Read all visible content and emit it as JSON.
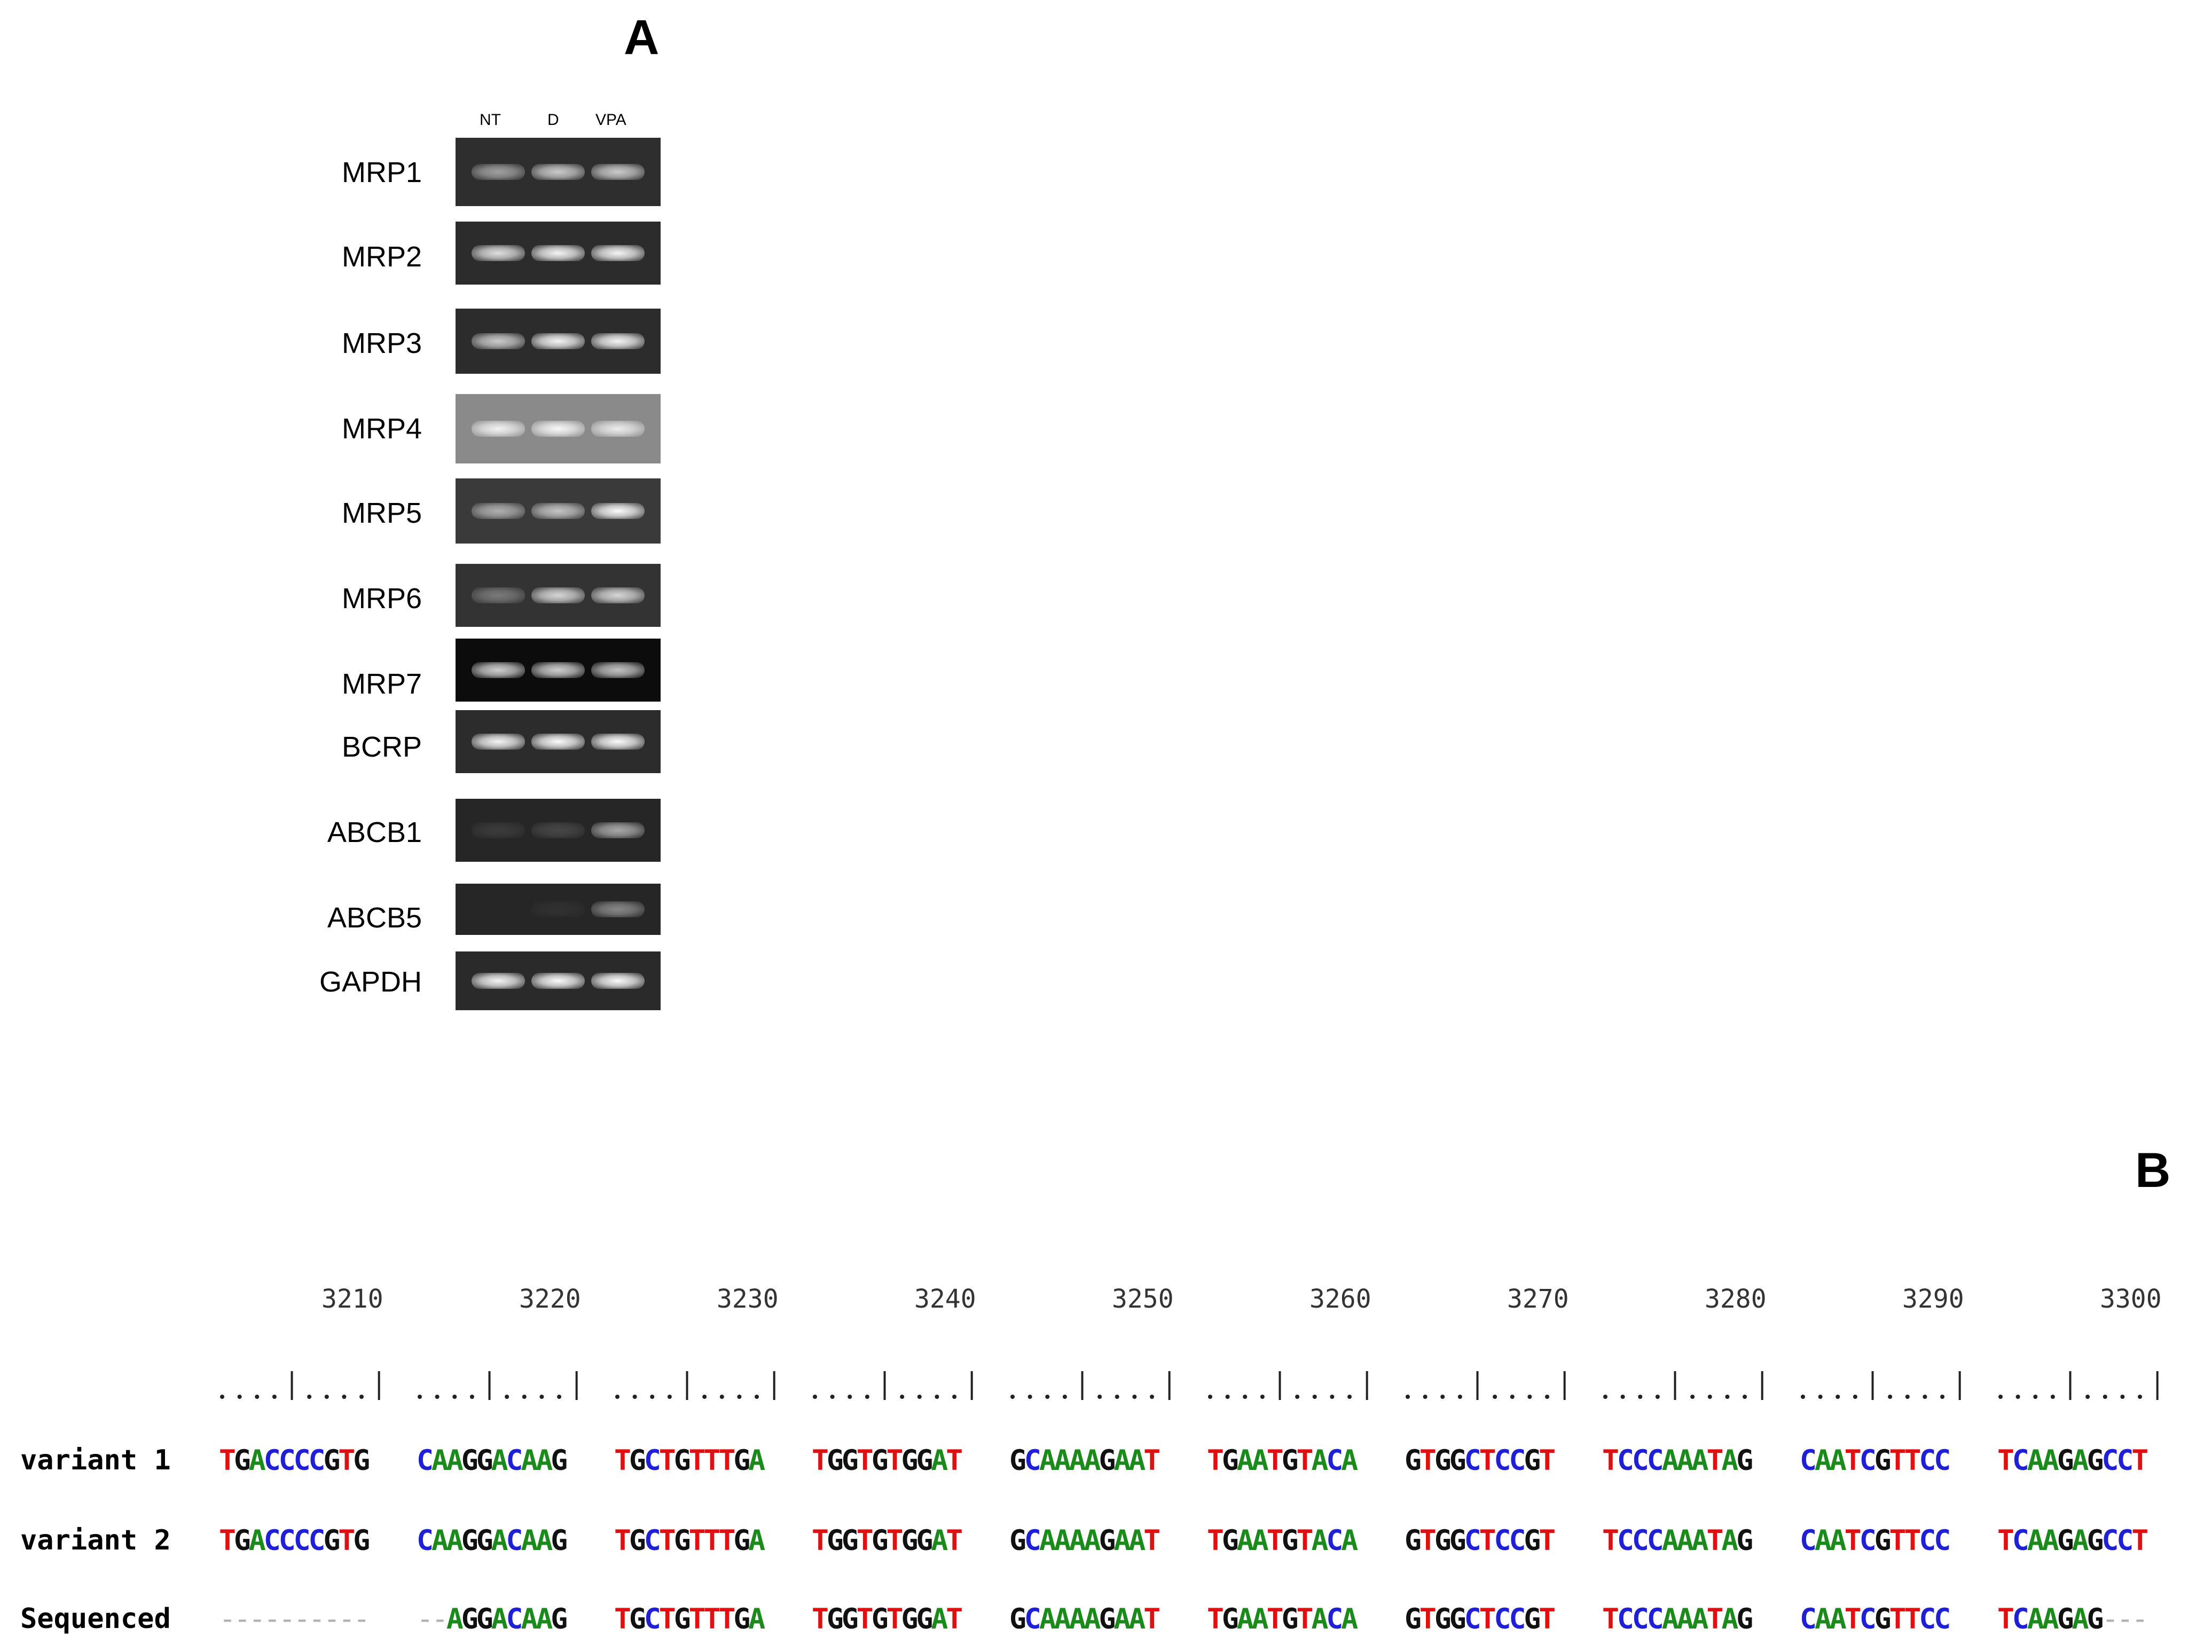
{
  "panel_a": {
    "letter": "A",
    "lanes": [
      "NT",
      "D",
      "VPA"
    ],
    "genes": [
      {
        "name": "MRP1",
        "bg": "#2e2e2e",
        "intensity": [
          0.55,
          0.75,
          0.75
        ]
      },
      {
        "name": "MRP2",
        "bg": "#2c2c2c",
        "intensity": [
          0.85,
          0.95,
          0.95
        ]
      },
      {
        "name": "MRP3",
        "bg": "#2c2c2c",
        "intensity": [
          0.75,
          0.95,
          0.95
        ]
      },
      {
        "name": "MRP4",
        "bg": "#8a8a8a",
        "intensity": [
          0.9,
          0.95,
          0.85
        ]
      },
      {
        "name": "MRP5",
        "bg": "#3a3a3a",
        "intensity": [
          0.6,
          0.7,
          0.98
        ]
      },
      {
        "name": "MRP6",
        "bg": "#333333",
        "intensity": [
          0.35,
          0.8,
          0.8
        ]
      },
      {
        "name": "MRP7",
        "bg": "#0c0c0c",
        "intensity": [
          0.8,
          0.8,
          0.75
        ]
      },
      {
        "name": "BCRP",
        "bg": "#2c2c2c",
        "intensity": [
          0.95,
          0.98,
          0.98
        ]
      },
      {
        "name": "ABCB1",
        "bg": "#262626",
        "intensity": [
          0.1,
          0.15,
          0.6
        ]
      },
      {
        "name": "ABCB5",
        "bg": "#262626",
        "intensity": [
          0.0,
          0.05,
          0.45
        ]
      },
      {
        "name": "GAPDH",
        "bg": "#2a2a2a",
        "intensity": [
          0.95,
          0.98,
          0.98
        ]
      }
    ]
  },
  "panel_b": {
    "letter": "B",
    "positions": [
      "3210",
      "3220",
      "3230",
      "3240",
      "3250",
      "3260",
      "3270",
      "3280",
      "3290",
      "3300"
    ],
    "ruler_segment": "....|....|",
    "rows": [
      {
        "label": "variant 1",
        "blocks": [
          "TGACCCCGTG",
          "CAAGGACAAG",
          "TGCTGTTTGA",
          "TGGTGTGGAT",
          "GCAAAAGAAT",
          "TGAATGTACA",
          "GTGGCTCCGT",
          "TCCCAAATAG",
          "CAATCGTTCC",
          "TCAAGAGCCT"
        ]
      },
      {
        "label": "variant 2",
        "blocks": [
          "TGACCCCGTG",
          "CAAGGACAAG",
          "TGCTGTTTGA",
          "TGGTGTGGAT",
          "GCAAAAGAAT",
          "TGAATGTACA",
          "GTGGCTCCGT",
          "TCCCAAATAG",
          "CAATCGTTCC",
          "TCAAGAGCCT"
        ]
      },
      {
        "label": "Sequenced",
        "blocks": [
          "----------",
          "--AGGACAAG",
          "TGCTGTTTGA",
          "TGGTGTGGAT",
          "GCAAAAGAAT",
          "TGAATGTACA",
          "GTGGCTCCGT",
          "TCCCAAATAG",
          "CAATCGTTCC",
          "TCAAGAG---"
        ]
      }
    ],
    "colors": {
      "A": "#1a8a1a",
      "C": "#1f1fd6",
      "G": "#111111",
      "T": "#e01010",
      "-": "#b0b0b0"
    }
  }
}
